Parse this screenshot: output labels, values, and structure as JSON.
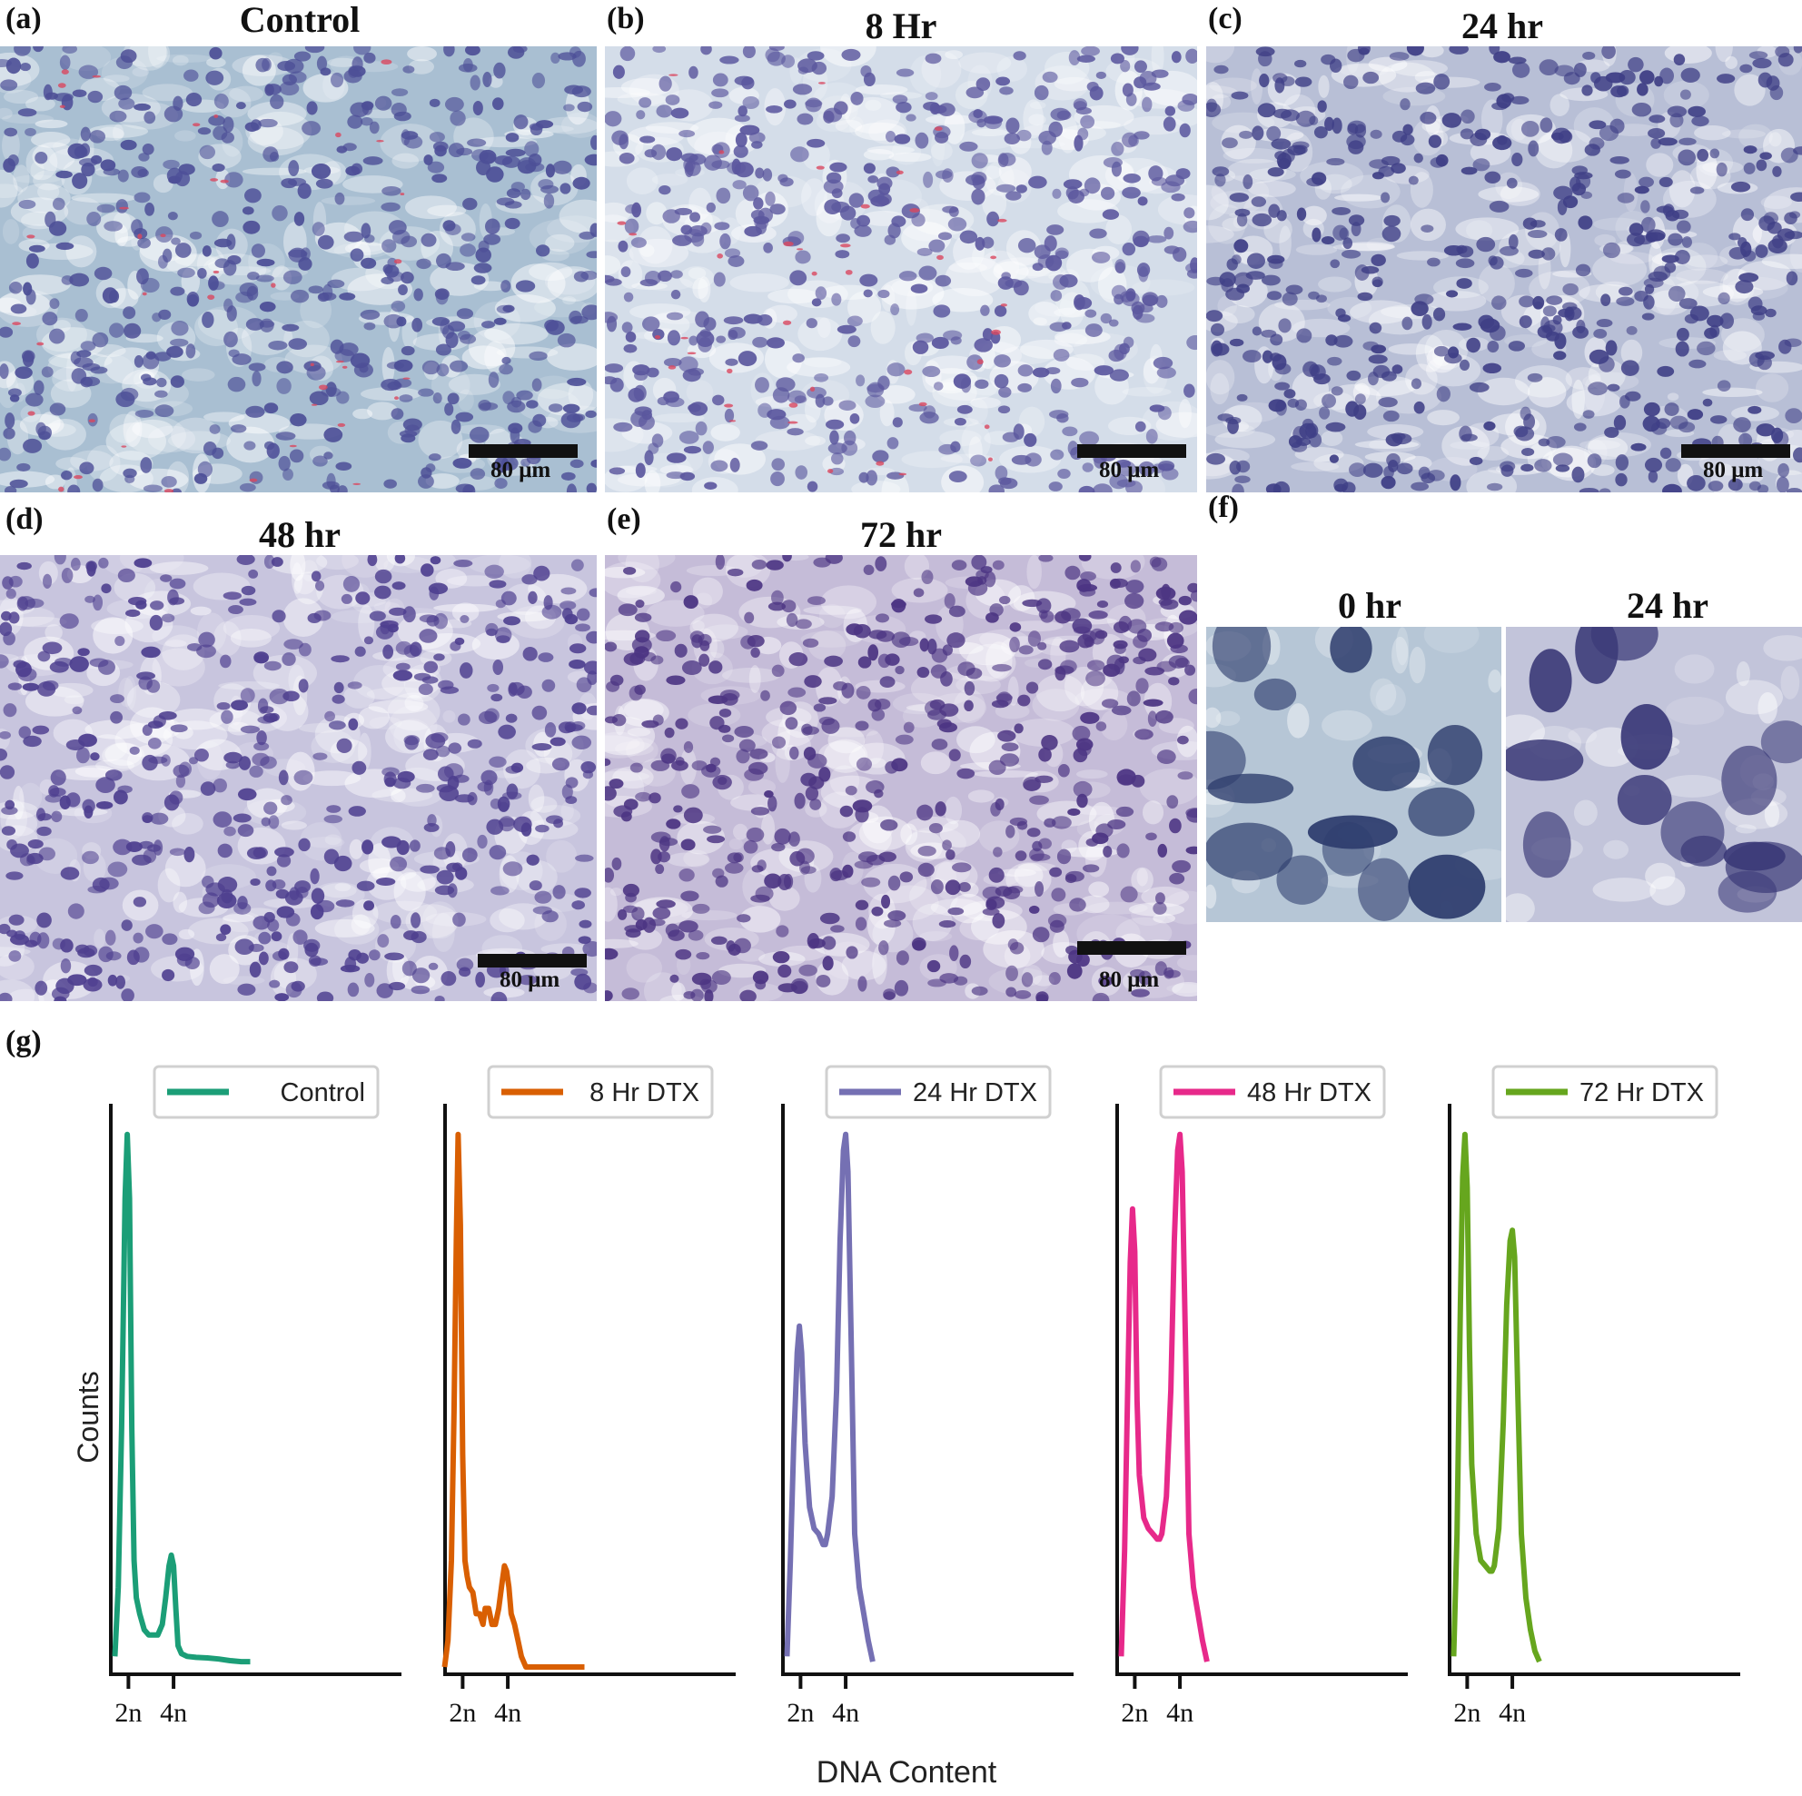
{
  "micrographs": [
    {
      "id": "a",
      "letter": "(a)",
      "title": "Control",
      "scale": "80 μm",
      "tint": "#a9bfd2",
      "nuc": "#4d4f97",
      "red": true
    },
    {
      "id": "b",
      "letter": "(b)",
      "title": "8 Hr",
      "scale": "80 μm",
      "tint": "#d4dde9",
      "nuc": "#5b579e",
      "red": true
    },
    {
      "id": "c",
      "letter": "(c)",
      "title": "24 hr",
      "scale": "80 μm",
      "tint": "#b8bfd6",
      "nuc": "#3f3f86",
      "red": false
    },
    {
      "id": "d",
      "letter": "(d)",
      "title": "48 hr",
      "scale": "80 μm",
      "tint": "#c8c5de",
      "nuc": "#4e3f8f",
      "red": false
    },
    {
      "id": "e",
      "letter": "(e)",
      "title": "72 hr",
      "scale": "80 μm",
      "tint": "#c5bcd8",
      "nuc": "#4c3583",
      "red": false
    }
  ],
  "panel_f": {
    "letter": "(f)",
    "left_title": "0 hr",
    "right_title": "24 hr"
  },
  "panel_g": {
    "letter": "(g)"
  },
  "chart_data": {
    "type": "line",
    "ylabel": "Counts",
    "xlabel": "DNA Content",
    "x_ticks": [
      "2n",
      "4n"
    ],
    "x_tick_values": [
      2,
      4
    ],
    "xlim": [
      1.3,
      7.7
    ],
    "ylim": [
      0,
      1.02
    ],
    "legend_position": "top",
    "y_ticks_shown": false,
    "series": [
      {
        "name": "Control",
        "color": "#1b9e77",
        "x": [
          1.4,
          1.55,
          1.7,
          1.85,
          1.95,
          2.05,
          2.15,
          2.25,
          2.35,
          2.5,
          2.7,
          2.9,
          3.1,
          3.3,
          3.5,
          3.65,
          3.8,
          3.9,
          4.0,
          4.1,
          4.2,
          4.35,
          4.6,
          5.0,
          5.5,
          6.0,
          6.5,
          7.0,
          7.4
        ],
        "y": [
          0.02,
          0.15,
          0.45,
          0.88,
          1.0,
          0.88,
          0.45,
          0.2,
          0.13,
          0.1,
          0.07,
          0.06,
          0.06,
          0.06,
          0.08,
          0.13,
          0.19,
          0.21,
          0.19,
          0.11,
          0.04,
          0.025,
          0.02,
          0.018,
          0.017,
          0.015,
          0.012,
          0.01,
          0.01
        ]
      },
      {
        "name": "8 Hr DTX",
        "color": "#d95f02",
        "x": [
          1.2,
          1.35,
          1.5,
          1.62,
          1.72,
          1.8,
          1.9,
          2.0,
          2.1,
          2.2,
          2.3,
          2.45,
          2.6,
          2.75,
          2.9,
          3.0,
          3.15,
          3.3,
          3.45,
          3.6,
          3.75,
          3.85,
          3.95,
          4.05,
          4.15,
          4.3,
          4.45,
          4.6,
          4.8,
          5.2,
          5.8,
          6.4,
          7.0,
          7.4
        ],
        "y": [
          0.0,
          0.05,
          0.2,
          0.48,
          0.8,
          1.0,
          0.83,
          0.4,
          0.2,
          0.17,
          0.15,
          0.14,
          0.1,
          0.1,
          0.08,
          0.11,
          0.11,
          0.08,
          0.08,
          0.11,
          0.16,
          0.19,
          0.18,
          0.15,
          0.1,
          0.08,
          0.05,
          0.02,
          0.0,
          0.0,
          0.0,
          0.0,
          0.0,
          0.0
        ]
      },
      {
        "name": "24 Hr DTX",
        "color": "#7570b3",
        "x": [
          1.4,
          1.55,
          1.7,
          1.85,
          1.95,
          2.05,
          2.2,
          2.4,
          2.6,
          2.8,
          3.0,
          3.1,
          3.2,
          3.4,
          3.6,
          3.75,
          3.9,
          4.0,
          4.1,
          4.25,
          4.4,
          4.6,
          4.8,
          5.0,
          5.2
        ],
        "y": [
          0.02,
          0.2,
          0.42,
          0.59,
          0.64,
          0.59,
          0.42,
          0.3,
          0.26,
          0.25,
          0.23,
          0.23,
          0.25,
          0.32,
          0.52,
          0.8,
          0.97,
          1.0,
          0.93,
          0.6,
          0.25,
          0.15,
          0.1,
          0.05,
          0.01
        ]
      },
      {
        "name": "48 Hr DTX",
        "color": "#e7298a",
        "x": [
          1.4,
          1.55,
          1.7,
          1.8,
          1.9,
          2.0,
          2.1,
          2.2,
          2.4,
          2.6,
          2.8,
          3.0,
          3.1,
          3.2,
          3.4,
          3.6,
          3.75,
          3.9,
          4.0,
          4.1,
          4.25,
          4.4,
          4.6,
          4.8,
          5.0,
          5.2
        ],
        "y": [
          0.02,
          0.22,
          0.55,
          0.76,
          0.86,
          0.78,
          0.5,
          0.36,
          0.28,
          0.26,
          0.25,
          0.24,
          0.24,
          0.25,
          0.32,
          0.52,
          0.8,
          0.97,
          1.0,
          0.93,
          0.6,
          0.25,
          0.15,
          0.1,
          0.05,
          0.01
        ]
      },
      {
        "name": "72 Hr DTX",
        "color": "#66a61e",
        "x": [
          1.4,
          1.55,
          1.7,
          1.8,
          1.9,
          2.0,
          2.1,
          2.2,
          2.4,
          2.6,
          2.8,
          3.0,
          3.1,
          3.2,
          3.4,
          3.6,
          3.75,
          3.9,
          4.0,
          4.1,
          4.25,
          4.4,
          4.6,
          4.8,
          5.0,
          5.2
        ],
        "y": [
          0.02,
          0.25,
          0.68,
          0.92,
          1.0,
          0.9,
          0.6,
          0.38,
          0.25,
          0.2,
          0.19,
          0.18,
          0.18,
          0.19,
          0.26,
          0.46,
          0.68,
          0.8,
          0.82,
          0.77,
          0.5,
          0.25,
          0.13,
          0.07,
          0.03,
          0.01
        ]
      }
    ]
  }
}
